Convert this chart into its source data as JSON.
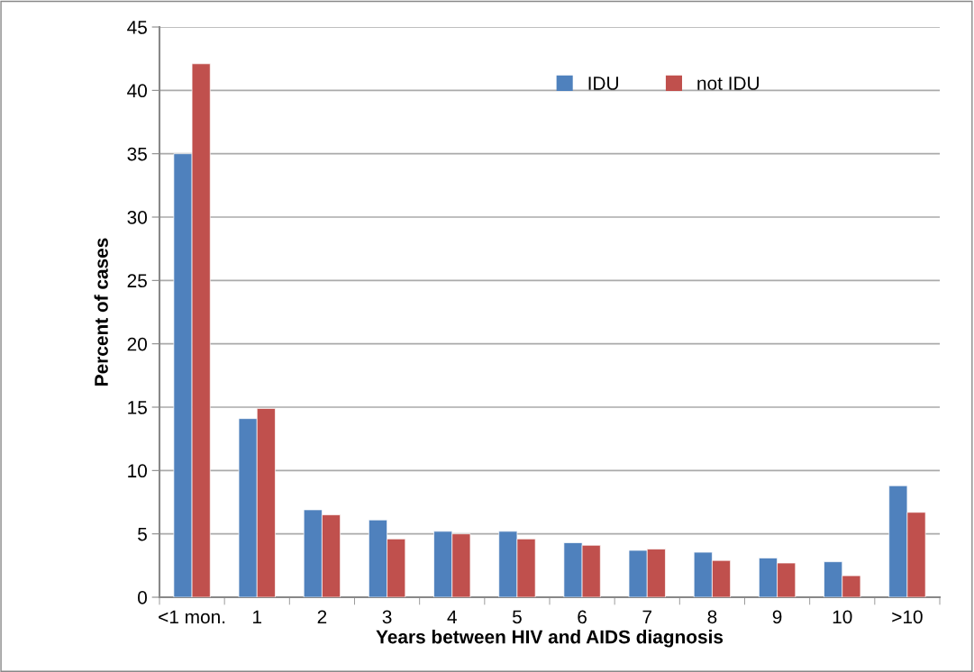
{
  "chart_data": {
    "type": "bar",
    "xlabel": "Years between HIV and AIDS diagnosis",
    "ylabel": "Percent of cases",
    "categories": [
      "<1 mon.",
      "1",
      "2",
      "3",
      "4",
      "5",
      "6",
      "7",
      "8",
      "9",
      "10",
      ">10"
    ],
    "series": [
      {
        "name": "IDU",
        "color": "#4f81bd",
        "values": [
          35,
          14.1,
          6.9,
          6.1,
          5.2,
          5.2,
          4.3,
          3.7,
          3.55,
          3.1,
          2.8,
          8.8
        ]
      },
      {
        "name": "not IDU",
        "color": "#c0504d",
        "values": [
          42.1,
          14.9,
          6.5,
          4.6,
          5.0,
          4.6,
          4.1,
          3.8,
          2.9,
          2.7,
          1.7,
          6.7
        ]
      }
    ],
    "ylim": [
      0,
      45
    ],
    "yticks": [
      0,
      5,
      10,
      15,
      20,
      25,
      30,
      35,
      40,
      45
    ],
    "grid": "y",
    "legend": "top right"
  }
}
